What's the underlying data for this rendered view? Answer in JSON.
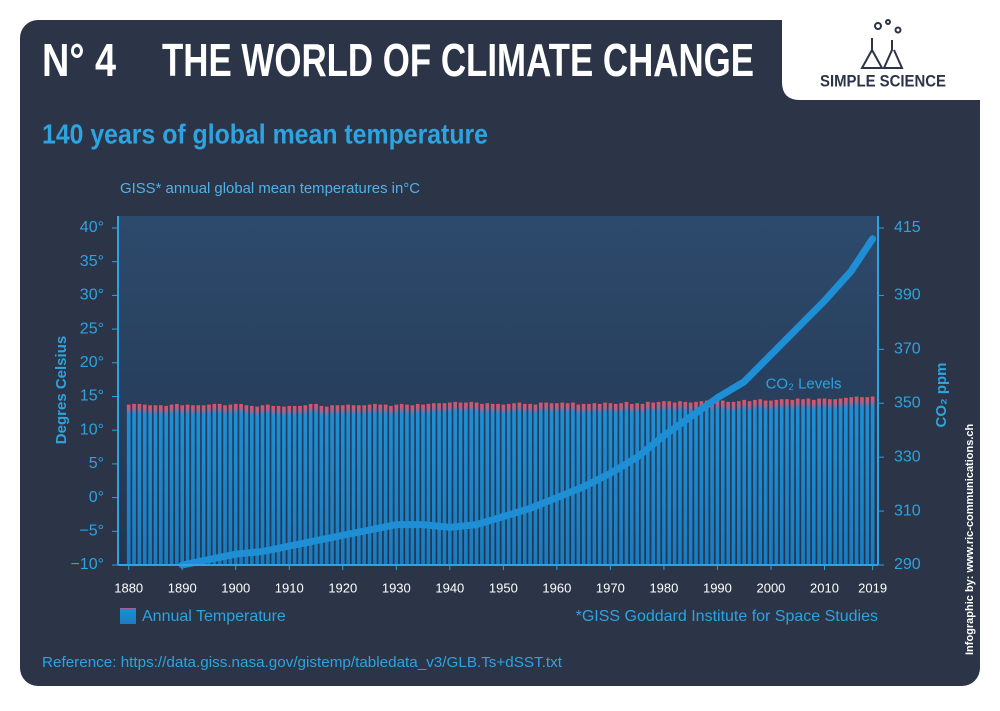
{
  "header": {
    "number": "N° 4",
    "title": "THE WORLD OF CLIMATE CHANGE",
    "logo": "SIMPLE SCIENCE"
  },
  "chart_data": {
    "type": "bar",
    "title": "140 years of global mean temperature",
    "subtitle": "GISS* annual global mean temperatures in°C",
    "ylabel": "Degres Celsius",
    "y2label": "CO₂ ppm",
    "footnote": "*GISS Goddard Institute for Space Studies",
    "xlim": [
      1878,
      2020
    ],
    "xticks": [
      1880,
      1890,
      1900,
      1910,
      1920,
      1930,
      1940,
      1950,
      1960,
      1970,
      1980,
      1990,
      2000,
      2010,
      2019
    ],
    "ylim": [
      -10,
      40
    ],
    "yticks": [
      {
        "value": 40,
        "label": "40°"
      },
      {
        "value": 35,
        "label": "35°"
      },
      {
        "value": 30,
        "label": "30°"
      },
      {
        "value": 25,
        "label": "25°"
      },
      {
        "value": 20,
        "label": "20°"
      },
      {
        "value": 15,
        "label": "15°"
      },
      {
        "value": 10,
        "label": "10°"
      },
      {
        "value": 5,
        "label": "5°"
      },
      {
        "value": 0,
        "label": "0°"
      },
      {
        "value": -5,
        "label": "−5°"
      },
      {
        "value": -10,
        "label": "−10°"
      }
    ],
    "y2lim": [
      290,
      415
    ],
    "y2ticks": [
      290,
      310,
      330,
      350,
      370,
      390,
      415
    ],
    "series": [
      {
        "name": "Annual Temperature",
        "type": "bar",
        "color": "#1e8fd5",
        "cap_color": "#e8505b",
        "x": [
          1880,
          1881,
          1882,
          1883,
          1884,
          1885,
          1886,
          1887,
          1888,
          1889,
          1890,
          1891,
          1892,
          1893,
          1894,
          1895,
          1896,
          1897,
          1898,
          1899,
          1900,
          1901,
          1902,
          1903,
          1904,
          1905,
          1906,
          1907,
          1908,
          1909,
          1910,
          1911,
          1912,
          1913,
          1914,
          1915,
          1916,
          1917,
          1918,
          1919,
          1920,
          1921,
          1922,
          1923,
          1924,
          1925,
          1926,
          1927,
          1928,
          1929,
          1930,
          1931,
          1932,
          1933,
          1934,
          1935,
          1936,
          1937,
          1938,
          1939,
          1940,
          1941,
          1942,
          1943,
          1944,
          1945,
          1946,
          1947,
          1948,
          1949,
          1950,
          1951,
          1952,
          1953,
          1954,
          1955,
          1956,
          1957,
          1958,
          1959,
          1960,
          1961,
          1962,
          1963,
          1964,
          1965,
          1966,
          1967,
          1968,
          1969,
          1970,
          1971,
          1972,
          1973,
          1974,
          1975,
          1976,
          1977,
          1978,
          1979,
          1980,
          1981,
          1982,
          1983,
          1984,
          1985,
          1986,
          1987,
          1988,
          1989,
          1990,
          1991,
          1992,
          1993,
          1994,
          1995,
          1996,
          1997,
          1998,
          1999,
          2000,
          2001,
          2002,
          2003,
          2004,
          2005,
          2006,
          2007,
          2008,
          2009,
          2010,
          2011,
          2012,
          2013,
          2014,
          2015,
          2016,
          2017,
          2018,
          2019
        ],
        "values": [
          13.8,
          13.9,
          13.9,
          13.8,
          13.7,
          13.7,
          13.7,
          13.6,
          13.8,
          13.9,
          13.7,
          13.8,
          13.7,
          13.7,
          13.7,
          13.8,
          13.9,
          13.9,
          13.7,
          13.8,
          13.9,
          13.9,
          13.7,
          13.6,
          13.5,
          13.7,
          13.8,
          13.6,
          13.6,
          13.5,
          13.6,
          13.6,
          13.6,
          13.7,
          13.9,
          13.9,
          13.6,
          13.5,
          13.7,
          13.7,
          13.7,
          13.8,
          13.7,
          13.7,
          13.7,
          13.8,
          13.9,
          13.8,
          13.8,
          13.6,
          13.8,
          13.9,
          13.8,
          13.7,
          13.9,
          13.8,
          13.9,
          14.0,
          14.0,
          14.0,
          14.1,
          14.2,
          14.1,
          14.1,
          14.2,
          14.1,
          13.9,
          14.0,
          13.9,
          13.9,
          13.8,
          13.9,
          14.0,
          14.1,
          13.9,
          13.9,
          13.8,
          14.1,
          14.1,
          14.0,
          14.0,
          14.1,
          14.0,
          14.1,
          13.8,
          13.9,
          13.9,
          14.0,
          13.9,
          14.1,
          14.0,
          13.9,
          14.0,
          14.2,
          13.9,
          14.0,
          13.9,
          14.2,
          14.1,
          14.2,
          14.3,
          14.3,
          14.1,
          14.3,
          14.2,
          14.1,
          14.2,
          14.3,
          14.4,
          14.3,
          14.5,
          14.4,
          14.2,
          14.2,
          14.3,
          14.5,
          14.3,
          14.5,
          14.6,
          14.4,
          14.4,
          14.5,
          14.6,
          14.6,
          14.5,
          14.7,
          14.6,
          14.7,
          14.5,
          14.7,
          14.7,
          14.6,
          14.6,
          14.7,
          14.8,
          14.9,
          15.0,
          14.9,
          14.9,
          15.0
        ]
      },
      {
        "name": "CO₂ Levels",
        "type": "line",
        "axis": "y2",
        "color": "#1e8fd5",
        "x": [
          1890,
          1895,
          1900,
          1905,
          1910,
          1915,
          1920,
          1925,
          1930,
          1935,
          1940,
          1945,
          1950,
          1955,
          1960,
          1965,
          1970,
          1975,
          1980,
          1985,
          1990,
          1995,
          2000,
          2005,
          2010,
          2015,
          2019
        ],
        "values": [
          290,
          292,
          294,
          295,
          297,
          299,
          301,
          303,
          305,
          305,
          304,
          305,
          308,
          311,
          315,
          319,
          324,
          330,
          338,
          345,
          352,
          358,
          368,
          378,
          388,
          399,
          411
        ]
      }
    ]
  },
  "footer": {
    "reference": "Reference: https://data.giss.nasa.gov/gistemp/tabledata_v3/GLB.Ts+dSST.txt",
    "credit": "Infographic by: www.ric-communications.ch"
  }
}
